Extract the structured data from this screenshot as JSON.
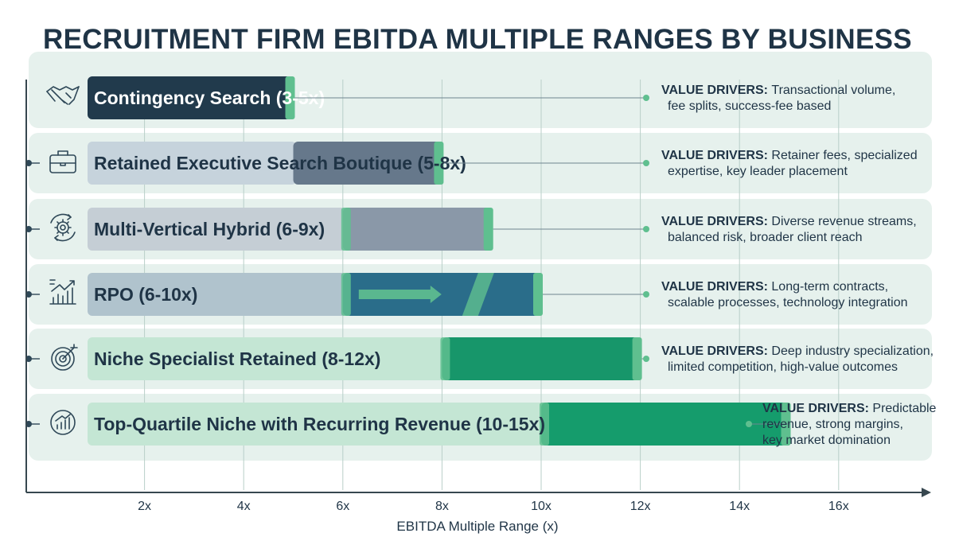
{
  "chart_data": {
    "type": "bar",
    "subtype": "floating-range-bar",
    "title": "RECRUITMENT FIRM EBITDA MULTIPLE RANGES BY BUSINESS MODEL",
    "xlabel": "EBITDA Multiple Range (x)",
    "ylabel": "",
    "xlim": [
      0,
      18
    ],
    "x_ticks": [
      "2x",
      "4x",
      "6x",
      "8x",
      "10x",
      "12x",
      "14x",
      "16x"
    ],
    "x_tick_values": [
      2,
      4,
      6,
      8,
      10,
      12,
      14,
      16
    ],
    "grid": true,
    "drivers_heading": "VALUE DRIVERS:",
    "categories": [
      {
        "label": "Contingency Search (3-5x)",
        "low": 3,
        "high": 5,
        "icon": "handshake-icon",
        "drivers": [
          "Transactional volume,",
          "fee splits, success-fee based"
        ]
      },
      {
        "label": "Retained Executive Search Boutique (5-8x)",
        "low": 5,
        "high": 8,
        "icon": "briefcase-icon",
        "drivers": [
          "Retainer fees, specialized",
          "expertise, key leader placement"
        ]
      },
      {
        "label": "Multi-Vertical Hybrid (6-9x)",
        "low": 6,
        "high": 9,
        "icon": "gear-cycle-icon",
        "drivers": [
          "Diverse revenue streams,",
          "balanced risk, broader client reach"
        ]
      },
      {
        "label": "RPO (6-10x)",
        "low": 6,
        "high": 10,
        "icon": "growth-chart-icon",
        "drivers": [
          "Long-term contracts,",
          "scalable processes, technology integration"
        ]
      },
      {
        "label": "Niche Specialist Retained (8-12x)",
        "low": 8,
        "high": 12,
        "icon": "target-icon",
        "drivers": [
          "Deep industry specialization,",
          "limited competition, high-value outcomes"
        ]
      },
      {
        "label": "Top-Quartile Niche with Recurring Revenue (10-15x)",
        "low": 10,
        "high": 15,
        "icon": "recurring-chart-icon",
        "drivers": [
          "Predictable",
          "revenue, strong margins,",
          "key market domination"
        ]
      }
    ]
  },
  "colors": {
    "title": "#1f3446",
    "row_band": "#e6f1ed",
    "grid": "#b9cfc9",
    "axis": "#37474f",
    "bar_fills": [
      "#213a4c",
      "#66788b",
      "#8a98a8",
      "#2a6d8a",
      "#17966a",
      "#159c6c"
    ],
    "bar_pads": [
      "#a9bdc9",
      "#c6d3dc",
      "#c5ced5",
      "#b0c3cd",
      "#c4e6d4",
      "#c4e6d4"
    ],
    "label_colors": [
      "#ffffff",
      "#1f3446",
      "#1f3446",
      "#1f3446",
      "#1f3446",
      "#1f3446"
    ],
    "accent": "#5fbf8f"
  }
}
